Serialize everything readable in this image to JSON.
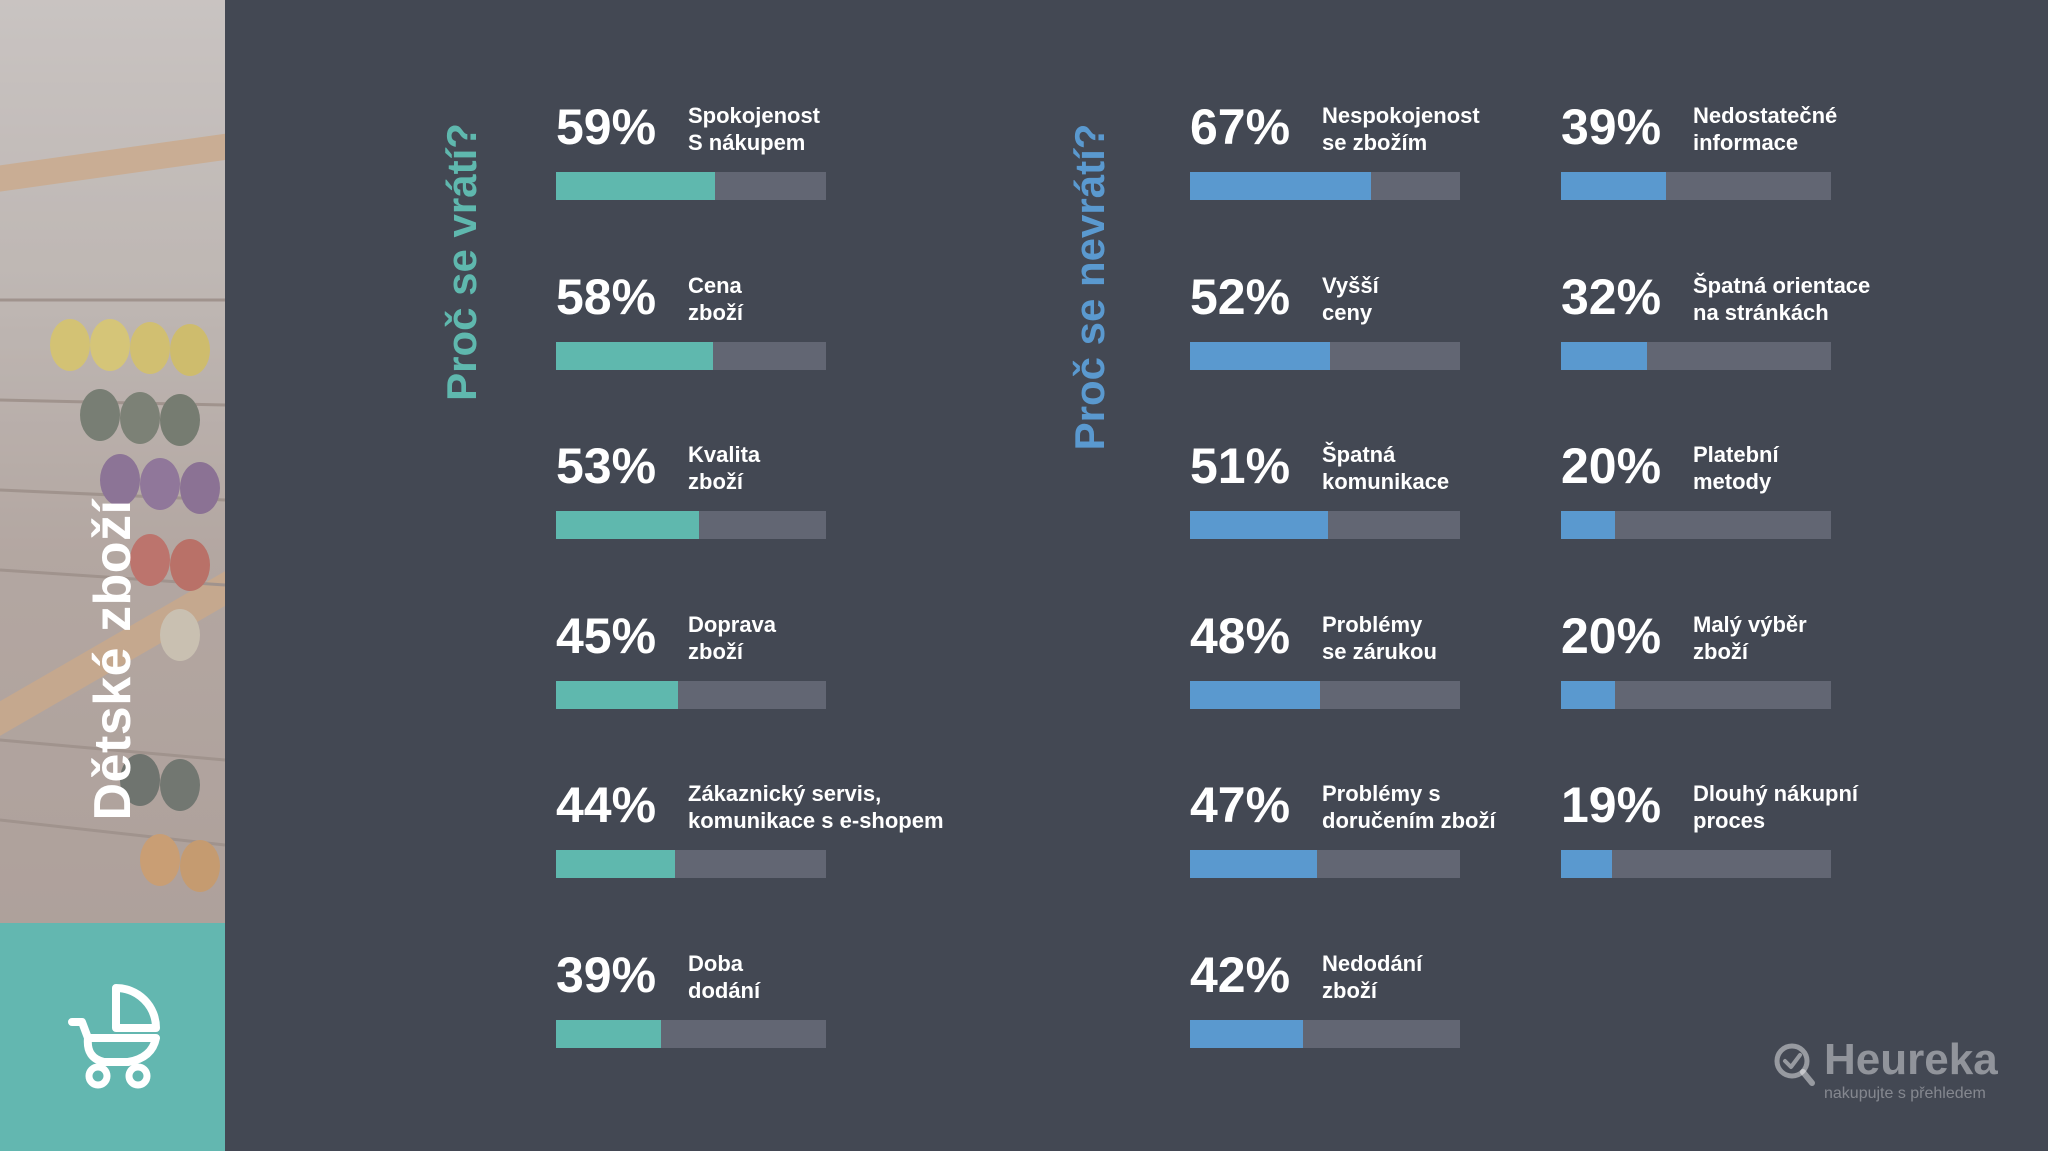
{
  "sidebar": {
    "category_title": "Dětské zboží",
    "icon": "baby-stroller-icon",
    "accent_color": "#63b7b0"
  },
  "colors": {
    "background": "#434853",
    "return_bar": "#5fb8ae",
    "noreturn_bar": "#5a99cf",
    "track": "#626673"
  },
  "logo": {
    "name": "Heureka",
    "tagline": "nakupujte s přehledem",
    "icon": "heureka-magnifier-icon"
  },
  "chart_data": [
    {
      "type": "bar",
      "title": "Proč se vrátí?",
      "xlim": [
        0,
        100
      ],
      "unit": "%",
      "color": "#5fb8ae",
      "categories": [
        "Spokojenost\nS nákupem",
        "Cena\nzboží",
        "Kvalita\nzboží",
        "Doprava\nzboží",
        "Zákaznický servis,\nkomunikace s e-shopem",
        "Doba\ndodání"
      ],
      "values": [
        59,
        58,
        53,
        45,
        44,
        39
      ]
    },
    {
      "type": "bar",
      "title": "Proč se nevrátí?",
      "xlim": [
        0,
        100
      ],
      "unit": "%",
      "color": "#5a99cf",
      "categories": [
        "Nespokojenost\nse zbožím",
        "Vyšší\nceny",
        "Špatná\nkomunikace",
        "Problémy\nse zárukou",
        "Problémy s\ndoručením zboží",
        "Nedodání\nzboží",
        "Nedostatečné\ninformace",
        "Špatná orientace\nna stránkách",
        "Platební\nmetody",
        "Malý výběr\nzboží",
        "Dlouhý nákupní\nproces"
      ],
      "values": [
        67,
        52,
        51,
        48,
        47,
        42,
        39,
        32,
        20,
        20,
        19
      ]
    }
  ]
}
